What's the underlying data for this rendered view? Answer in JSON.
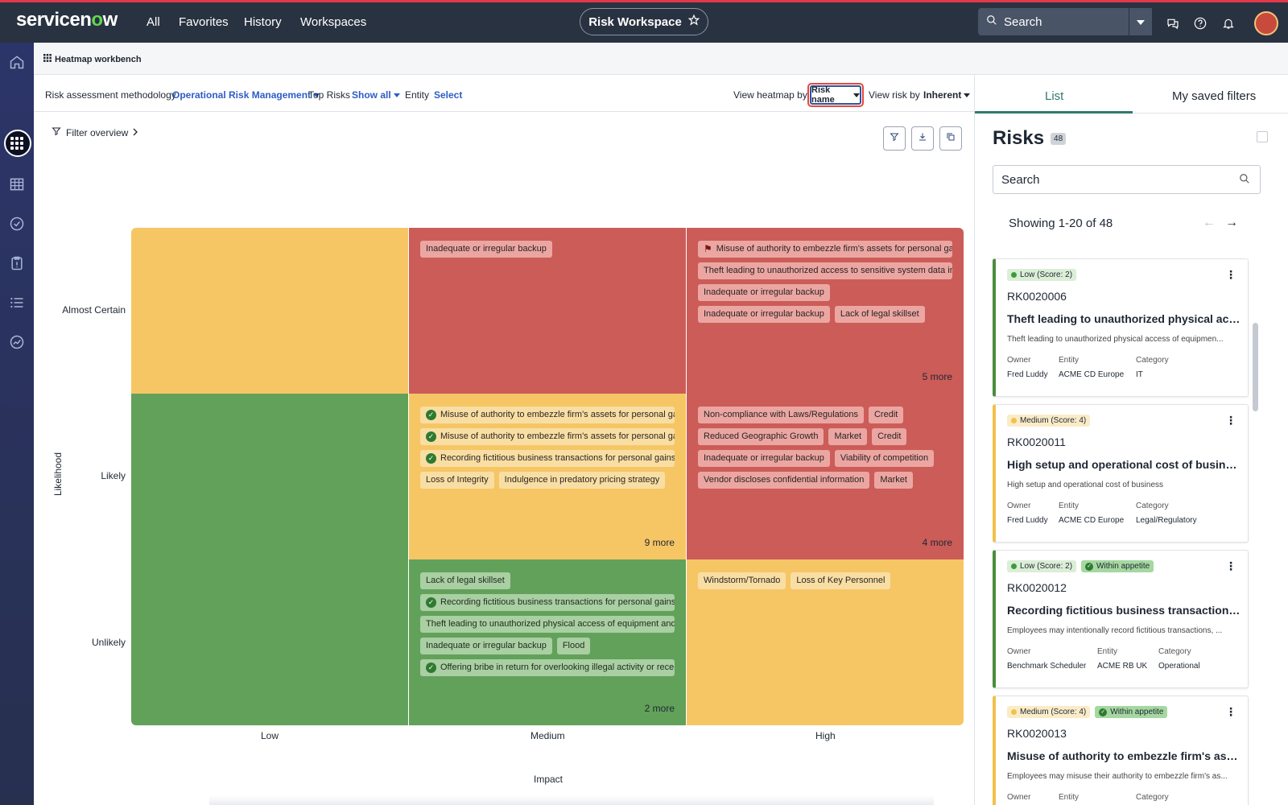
{
  "topnav": {
    "logo_text": "servicenow",
    "items": [
      "All",
      "Favorites",
      "History",
      "Workspaces"
    ],
    "workspace_title": "Risk Workspace",
    "search_placeholder": "Search",
    "accent_color": "#e3384b"
  },
  "subheader": {
    "title": "Heatmap workbench"
  },
  "toolbar": {
    "methodology_label": "Risk assessment methodology",
    "methodology_value": "Operational Risk Management",
    "top_risks_label": "Top Risks",
    "top_risks_value": "Show all",
    "entity_label": "Entity",
    "entity_value": "Select",
    "view_heatmap_label": "View heatmap by",
    "view_heatmap_value": "Risk name",
    "view_risk_label": "View risk by",
    "view_risk_value": "Inherent"
  },
  "filter_overview": "Filter overview",
  "heatmap": {
    "y_axis_title": "Likelihood",
    "x_axis_title": "Impact",
    "rows": [
      "Almost Certain",
      "Likely",
      "Unlikely"
    ],
    "columns": [
      "Low",
      "Medium",
      "High"
    ],
    "colors": {
      "green": "#62a15a",
      "yellow": "#f6c665",
      "red": "#cc5c58"
    },
    "cells": {
      "ac_low": {
        "chips": [],
        "more": ""
      },
      "ac_med": {
        "chips": [
          "Inadequate or irregular backup"
        ],
        "more": ""
      },
      "ac_high": {
        "chips": [
          "Misuse of authority to embezzle firm's assets for personal gair",
          "Theft leading to unauthorized access to sensitive system data in r",
          "Inadequate or irregular backup",
          "Inadequate or irregular backup",
          "Lack of legal skillset"
        ],
        "more": "5 more"
      },
      "l_low": {
        "chips": [],
        "more": ""
      },
      "l_med": {
        "chips": [
          "Misuse of authority to embezzle firm's assets for personal gair",
          "Misuse of authority to embezzle firm's assets for personal gair",
          "Recording fictitious business transactions for personal gains",
          "Loss of Integrity",
          "Indulgence in predatory pricing strategy"
        ],
        "more": "9 more"
      },
      "l_high": {
        "chips": [
          "Non-compliance with Laws/Regulations",
          "Credit",
          "Reduced Geographic Growth",
          "Market",
          "Credit",
          "Inadequate or irregular backup",
          "Viability of competition",
          "Vendor discloses confidential information",
          "Market"
        ],
        "more": "4 more"
      },
      "u_low": {
        "chips": [],
        "more": ""
      },
      "u_med": {
        "chips": [
          "Lack of legal skillset",
          "Recording fictitious business transactions for personal gains",
          "Theft leading to unauthorized physical access of equipment and c",
          "Inadequate or irregular backup",
          "Flood",
          "Offering bribe in return for overlooking illegal activity or recei"
        ],
        "more": "2 more"
      },
      "u_high": {
        "chips": [
          "Windstorm/Tornado",
          "Loss of Key Personnel"
        ],
        "more": ""
      }
    }
  },
  "right_panel": {
    "tabs": [
      "List",
      "My saved filters"
    ],
    "title": "Risks",
    "count": "48",
    "search_placeholder": "Search",
    "showing": "Showing 1-20 of 48",
    "meta_labels": {
      "owner": "Owner",
      "entity": "Entity",
      "category": "Category"
    },
    "cards": [
      {
        "score": "Low (Score: 2)",
        "appetite": "",
        "number": "RK0020006",
        "title": "Theft leading to unauthorized physical acce...",
        "desc": "Theft leading to unauthorized physical access of equipmen...",
        "owner": "Fred Luddy",
        "entity": "ACME CD Europe",
        "category": "IT"
      },
      {
        "score": "Medium (Score: 4)",
        "appetite": "",
        "number": "RK0020011",
        "title": "High setup and operational cost of business",
        "desc": "High setup and operational cost of business",
        "owner": "Fred Luddy",
        "entity": "ACME CD Europe",
        "category": "Legal/Regulatory"
      },
      {
        "score": "Low (Score: 2)",
        "appetite": "Within appetite",
        "number": "RK0020012",
        "title": "Recording fictitious business transactions fo...",
        "desc": "Employees may intentionally record fictitious transactions, ...",
        "owner": "Benchmark Scheduler",
        "entity": "ACME RB UK",
        "category": "Operational"
      },
      {
        "score": "Medium (Score: 4)",
        "appetite": "Within appetite",
        "number": "RK0020013",
        "title": "Misuse of authority to embezzle firm's asset...",
        "desc": "Employees may misuse their authority to embezzle firm's as...",
        "owner": "",
        "entity": "",
        "category": ""
      }
    ]
  }
}
